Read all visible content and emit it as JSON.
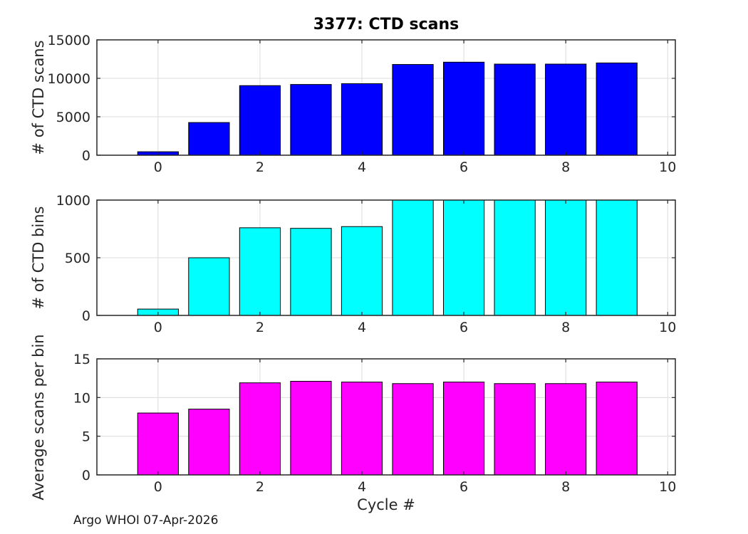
{
  "chart_data": {
    "type": "bar",
    "title": "3377: CTD scans",
    "xlabel": "Cycle #",
    "footer": "Argo WHOI 07-Apr-2026",
    "categories": [
      0,
      1,
      2,
      3,
      4,
      5,
      6,
      7,
      8,
      9
    ],
    "bar_width": 0.8,
    "xlim": [
      -1.2,
      10.15
    ],
    "xticks": [
      0,
      2,
      4,
      6,
      8,
      10
    ],
    "grid": true,
    "legend": "none",
    "subplots": [
      {
        "name": "ctd-scans",
        "ylabel": "# of CTD scans",
        "color": "#0000ff",
        "ylim": [
          0,
          15000
        ],
        "yticks": [
          0,
          5000,
          10000,
          15000
        ],
        "values": [
          450,
          4250,
          9050,
          9200,
          9300,
          11800,
          12100,
          11850,
          11850,
          12000
        ]
      },
      {
        "name": "ctd-bins",
        "ylabel": "# of CTD bins",
        "color": "#00ffff",
        "ylim": [
          0,
          1000
        ],
        "yticks": [
          0,
          500,
          1000
        ],
        "values": [
          55,
          500,
          760,
          755,
          770,
          1000,
          1000,
          1000,
          1000,
          1000
        ]
      },
      {
        "name": "avg-scans-per-bin",
        "ylabel": "Average scans per bin",
        "color": "#ff00ff",
        "ylim": [
          0,
          15
        ],
        "yticks": [
          0,
          5,
          10,
          15
        ],
        "values": [
          8.0,
          8.5,
          11.9,
          12.1,
          12.0,
          11.8,
          12.0,
          11.8,
          11.8,
          12.0
        ]
      }
    ]
  }
}
